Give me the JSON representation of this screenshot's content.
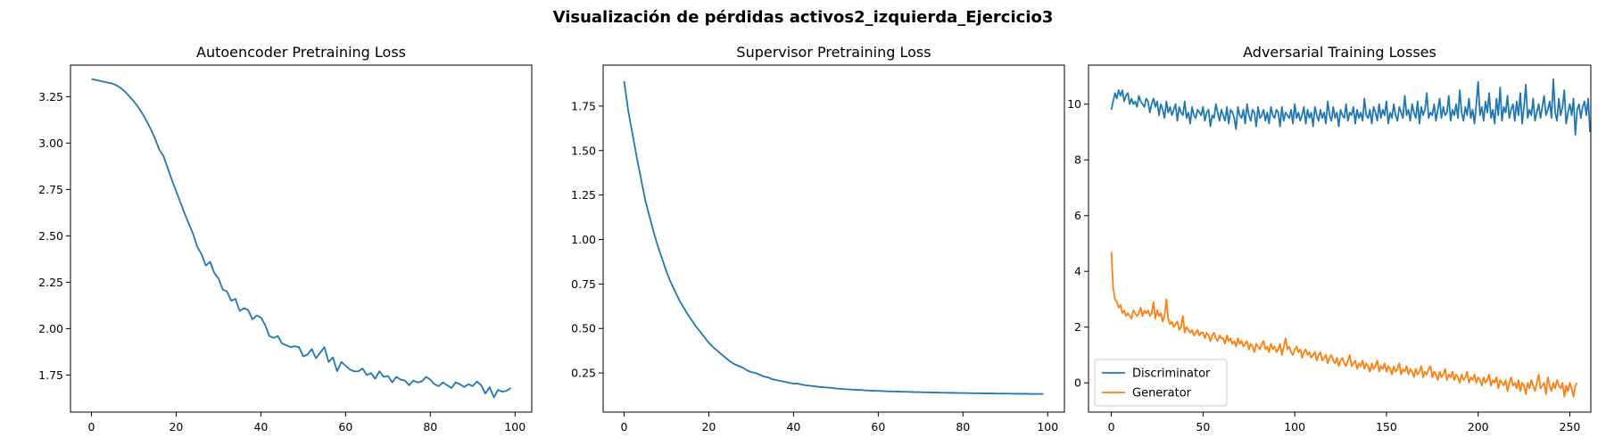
{
  "figure": {
    "suptitle": "Visualización de pérdidas activos2_izquierda_Ejercicio3"
  },
  "colors": {
    "blue": "#1f77b4",
    "orange": "#ff7f0e",
    "axis": "#000000"
  },
  "chart_data": [
    {
      "type": "line",
      "title": "Autoencoder Pretraining Loss",
      "xlabel": "",
      "ylabel": "",
      "xlim": [
        -4.95,
        103.95
      ],
      "ylim": [
        1.55,
        3.42
      ],
      "xticks": [
        0,
        20,
        40,
        60,
        80,
        100
      ],
      "xtick_labels": [
        "0",
        "20",
        "40",
        "60",
        "80",
        "100"
      ],
      "yticks": [
        1.75,
        2.0,
        2.25,
        2.5,
        2.75,
        3.0,
        3.25
      ],
      "ytick_labels": [
        "1.75",
        "2.00",
        "2.25",
        "2.50",
        "2.75",
        "3.00",
        "3.25"
      ],
      "grid": false,
      "series": [
        {
          "color": "#1f77b4",
          "x_start": 0,
          "x_step": 1,
          "values": [
            3.345,
            3.34,
            3.335,
            3.33,
            3.325,
            3.32,
            3.31,
            3.295,
            3.275,
            3.25,
            3.225,
            3.195,
            3.16,
            3.12,
            3.075,
            3.025,
            2.965,
            2.93,
            2.865,
            2.8,
            2.74,
            2.68,
            2.62,
            2.565,
            2.51,
            2.44,
            2.4,
            2.34,
            2.36,
            2.3,
            2.27,
            2.21,
            2.2,
            2.15,
            2.16,
            2.095,
            2.11,
            2.1,
            2.05,
            2.07,
            2.06,
            2.02,
            1.96,
            1.95,
            1.96,
            1.92,
            1.91,
            1.9,
            1.905,
            1.9,
            1.85,
            1.86,
            1.89,
            1.84,
            1.87,
            1.9,
            1.82,
            1.845,
            1.77,
            1.82,
            1.8,
            1.78,
            1.77,
            1.77,
            1.785,
            1.75,
            1.76,
            1.73,
            1.77,
            1.74,
            1.745,
            1.71,
            1.74,
            1.725,
            1.72,
            1.695,
            1.72,
            1.71,
            1.715,
            1.74,
            1.725,
            1.7,
            1.69,
            1.71,
            1.695,
            1.68,
            1.71,
            1.7,
            1.685,
            1.7,
            1.69,
            1.715,
            1.695,
            1.65,
            1.685,
            1.63,
            1.67,
            1.66,
            1.665,
            1.68
          ]
        }
      ]
    },
    {
      "type": "line",
      "title": "Supervisor Pretraining Loss",
      "xlabel": "",
      "ylabel": "",
      "xlim": [
        -4.95,
        103.95
      ],
      "ylim": [
        0.03,
        1.98
      ],
      "xticks": [
        0,
        20,
        40,
        60,
        80,
        100
      ],
      "xtick_labels": [
        "0",
        "20",
        "40",
        "60",
        "80",
        "100"
      ],
      "yticks": [
        0.25,
        0.5,
        0.75,
        1.0,
        1.25,
        1.5,
        1.75
      ],
      "ytick_labels": [
        "0.25",
        "0.50",
        "0.75",
        "1.00",
        "1.25",
        "1.50",
        "1.75"
      ],
      "grid": false,
      "series": [
        {
          "color": "#1f77b4",
          "x_start": 0,
          "x_step": 1,
          "values": [
            1.89,
            1.72,
            1.59,
            1.46,
            1.34,
            1.22,
            1.13,
            1.04,
            0.96,
            0.89,
            0.82,
            0.76,
            0.71,
            0.66,
            0.62,
            0.58,
            0.545,
            0.51,
            0.48,
            0.45,
            0.42,
            0.395,
            0.375,
            0.355,
            0.335,
            0.315,
            0.3,
            0.29,
            0.28,
            0.265,
            0.255,
            0.25,
            0.24,
            0.23,
            0.225,
            0.215,
            0.21,
            0.205,
            0.2,
            0.195,
            0.19,
            0.19,
            0.185,
            0.18,
            0.178,
            0.175,
            0.172,
            0.17,
            0.168,
            0.166,
            0.163,
            0.161,
            0.159,
            0.158,
            0.156,
            0.155,
            0.154,
            0.152,
            0.151,
            0.15,
            0.149,
            0.148,
            0.147,
            0.146,
            0.146,
            0.145,
            0.144,
            0.144,
            0.143,
            0.142,
            0.142,
            0.141,
            0.141,
            0.14,
            0.14,
            0.139,
            0.139,
            0.138,
            0.138,
            0.137,
            0.137,
            0.137,
            0.136,
            0.136,
            0.136,
            0.135,
            0.135,
            0.135,
            0.134,
            0.134,
            0.134,
            0.134,
            0.133,
            0.133,
            0.133,
            0.133,
            0.132,
            0.132,
            0.132,
            0.132
          ]
        }
      ]
    },
    {
      "type": "line",
      "title": "Adversarial Training Losses",
      "xlabel": "",
      "ylabel": "",
      "xlim": [
        -12.45,
        261.45
      ],
      "ylim": [
        -1.05,
        11.4
      ],
      "xticks": [
        0,
        50,
        100,
        150,
        200,
        250
      ],
      "xtick_labels": [
        "0",
        "50",
        "100",
        "150",
        "200",
        "250"
      ],
      "yticks": [
        0,
        2,
        4,
        6,
        8,
        10
      ],
      "ytick_labels": [
        "0",
        "2",
        "4",
        "6",
        "8",
        "10"
      ],
      "grid": false,
      "legend": {
        "placement": "lower-left"
      },
      "series": [
        {
          "name": "Discriminator",
          "color": "#1f77b4",
          "x_start": 0,
          "x_step": 1,
          "values": [
            9.8,
            10.1,
            10.4,
            10.2,
            10.5,
            10.3,
            10.5,
            10.1,
            10.3,
            10.4,
            10.0,
            10.2,
            10.0,
            10.1,
            9.9,
            10.3,
            10.1,
            10.0,
            9.9,
            10.2,
            10.1,
            9.7,
            10.0,
            10.2,
            9.9,
            10.1,
            9.6,
            10.0,
            9.8,
            9.5,
            10.1,
            9.7,
            9.9,
            9.6,
            9.8,
            10.0,
            9.4,
            9.9,
            9.7,
            9.6,
            10.1,
            9.5,
            9.7,
            9.3,
            9.9,
            9.6,
            9.5,
            9.8,
            9.7,
            9.6,
            9.9,
            9.4,
            9.7,
            9.8,
            9.2,
            9.6,
            9.5,
            10.0,
            9.7,
            9.4,
            9.8,
            9.6,
            9.4,
            9.9,
            9.3,
            9.8,
            9.7,
            9.5,
            9.1,
            9.9,
            9.6,
            9.5,
            9.8,
            9.3,
            10.0,
            9.6,
            9.4,
            9.8,
            9.7,
            9.2,
            9.9,
            9.5,
            9.6,
            9.8,
            9.4,
            9.7,
            9.3,
            9.9,
            9.6,
            9.5,
            9.8,
            9.7,
            9.2,
            9.9,
            9.4,
            9.7,
            9.6,
            9.5,
            9.8,
            9.3,
            10.0,
            9.5,
            9.7,
            9.4,
            9.6,
            9.9,
            9.3,
            9.8,
            9.5,
            9.7,
            9.2,
            9.9,
            9.6,
            9.4,
            9.8,
            9.5,
            9.7,
            9.3,
            10.1,
            9.6,
            9.4,
            9.9,
            9.5,
            9.7,
            9.2,
            9.8,
            9.6,
            9.5,
            10.0,
            9.4,
            9.7,
            9.6,
            9.9,
            9.3,
            9.8,
            9.5,
            9.7,
            9.4,
            10.2,
            9.6,
            9.5,
            9.8,
            9.3,
            9.9,
            9.7,
            9.4,
            10.0,
            9.5,
            9.8,
            9.6,
            10.1,
            9.3,
            9.7,
            9.5,
            10.0,
            9.6,
            9.4,
            9.9,
            9.7,
            9.5,
            10.3,
            9.6,
            9.8,
            9.4,
            10.0,
            9.7,
            9.5,
            10.1,
            9.3,
            9.9,
            9.6,
            9.8,
            10.4,
            9.5,
            9.7,
            9.6,
            10.0,
            9.4,
            9.8,
            10.2,
            9.5,
            9.9,
            9.6,
            9.7,
            10.3,
            9.4,
            9.8,
            9.6,
            10.0,
            9.5,
            10.5,
            9.7,
            9.4,
            9.9,
            9.6,
            10.2,
            9.5,
            9.8,
            9.3,
            10.0,
            10.8,
            9.6,
            9.9,
            9.4,
            10.1,
            9.7,
            10.4,
            9.5,
            9.8,
            9.3,
            10.2,
            9.6,
            10.6,
            9.4,
            9.9,
            9.7,
            10.3,
            9.5,
            9.8,
            10.0,
            9.4,
            10.1,
            9.6,
            10.4,
            9.3,
            9.9,
            10.7,
            9.5,
            9.8,
            9.6,
            10.2,
            9.4,
            9.7,
            10.0,
            9.5,
            9.9,
            10.3,
            9.6,
            9.8,
            10.1,
            9.5,
            10.9,
            9.7,
            9.4,
            10.2,
            9.6,
            9.9,
            10.5,
            9.3,
            9.7,
            10.0,
            9.6,
            10.2,
            8.9,
            9.8,
            10.0,
            9.5,
            9.9,
            10.1,
            9.6,
            10.2,
            9.0
          ]
        },
        {
          "name": "Generator",
          "color": "#ff7f0e",
          "x_start": 0,
          "x_step": 1,
          "values": [
            4.7,
            3.4,
            3.0,
            2.9,
            2.7,
            2.8,
            2.5,
            2.6,
            2.4,
            2.5,
            2.4,
            2.3,
            2.6,
            2.5,
            2.4,
            2.5,
            2.7,
            2.4,
            2.6,
            2.5,
            2.6,
            2.4,
            2.5,
            2.9,
            2.3,
            2.6,
            2.4,
            2.5,
            2.2,
            2.4,
            3.0,
            2.3,
            2.1,
            2.2,
            2.0,
            2.1,
            2.2,
            1.9,
            2.0,
            2.4,
            1.8,
            2.0,
            1.9,
            1.8,
            1.9,
            1.7,
            1.8,
            1.9,
            1.7,
            1.8,
            1.8,
            1.6,
            1.8,
            1.7,
            1.5,
            1.7,
            1.8,
            1.6,
            1.5,
            1.7,
            1.6,
            1.6,
            1.4,
            1.7,
            1.5,
            1.6,
            1.4,
            1.5,
            1.3,
            1.6,
            1.4,
            1.5,
            1.3,
            1.4,
            1.5,
            1.2,
            1.4,
            1.3,
            1.1,
            1.4,
            1.3,
            1.2,
            1.4,
            1.5,
            1.2,
            1.3,
            1.1,
            1.4,
            1.2,
            1.3,
            1.1,
            1.2,
            1.4,
            1.0,
            1.3,
            1.6,
            1.2,
            1.3,
            1.1,
            1.0,
            1.2,
            1.3,
            1.1,
            1.2,
            0.9,
            1.1,
            1.2,
            1.0,
            1.1,
            0.9,
            1.0,
            1.1,
            0.8,
            1.0,
            1.1,
            0.8,
            0.9,
            1.0,
            0.7,
            0.9,
            1.0,
            0.8,
            0.7,
            0.9,
            0.6,
            0.8,
            0.9,
            0.7,
            0.6,
            0.8,
            1.0,
            0.6,
            0.7,
            0.8,
            0.5,
            0.7,
            0.6,
            0.8,
            0.5,
            0.7,
            0.6,
            0.4,
            0.7,
            0.5,
            0.6,
            0.8,
            0.4,
            0.6,
            0.5,
            0.7,
            0.4,
            0.6,
            0.5,
            0.3,
            0.6,
            0.4,
            0.5,
            0.7,
            0.3,
            0.5,
            0.4,
            0.6,
            0.3,
            0.5,
            0.4,
            0.2,
            0.5,
            0.3,
            0.4,
            0.6,
            0.2,
            0.4,
            0.3,
            0.5,
            0.6,
            0.2,
            0.4,
            0.3,
            0.1,
            0.4,
            0.2,
            0.3,
            0.5,
            0.1,
            0.3,
            0.2,
            0.4,
            0.1,
            0.3,
            0.2,
            0.0,
            0.3,
            0.1,
            0.2,
            0.4,
            0.0,
            0.2,
            0.1,
            0.3,
            0.0,
            0.2,
            0.1,
            -0.1,
            0.2,
            0.0,
            0.1,
            0.3,
            -0.1,
            0.1,
            0.0,
            0.2,
            -0.2,
            0.1,
            0.0,
            -0.1,
            0.1,
            -0.3,
            0.0,
            0.2,
            -0.1,
            0.0,
            -0.2,
            0.1,
            -0.3,
            0.0,
            -0.1,
            -0.4,
            0.0,
            -0.2,
            0.1,
            -0.1,
            -0.3,
            0.0,
            0.3,
            -0.2,
            -0.1,
            0.0,
            -0.4,
            0.2,
            -0.1,
            -0.3,
            0.0,
            -0.2,
            0.1,
            -0.1,
            -0.2,
            0.0,
            -0.5,
            -0.1,
            -0.3,
            0.0,
            -0.2,
            -0.5,
            -0.1,
            0.0
          ]
        }
      ]
    }
  ]
}
